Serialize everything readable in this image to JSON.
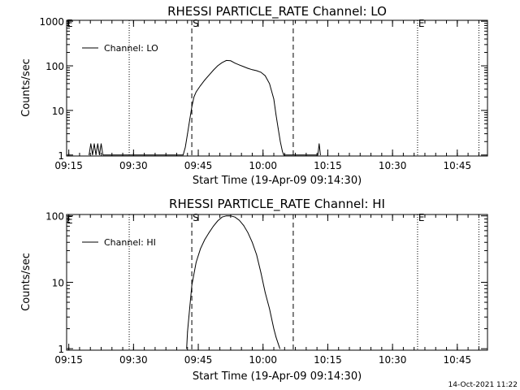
{
  "footer": {
    "timestamp": "14-Oct-2021 11:22"
  },
  "chart_data": [
    {
      "type": "line",
      "title": "RHESSI PARTICLE_RATE Channel: LO",
      "xlabel": "Start Time (19-Apr-09 09:14:30)",
      "ylabel": "Counts/sec",
      "yscale": "log",
      "ylim": [
        0.95,
        1050
      ],
      "xlim_minutes_after_0914_30": [
        0,
        97.5
      ],
      "ytick_labels": [
        "1",
        "10",
        "100",
        "1000"
      ],
      "ytick_values": [
        1,
        10,
        100,
        1000
      ],
      "xtick_labels": [
        "09:15",
        "09:30",
        "09:45",
        "10:00",
        "10:15",
        "10:30",
        "10:45"
      ],
      "xtick_values": [
        0.5,
        15.5,
        30.5,
        45.5,
        60.5,
        75.5,
        90.5
      ],
      "legend": {
        "placement": "top-left",
        "label": "Channel: LO"
      },
      "markers": [
        {
          "label": "S",
          "style": "dashed",
          "x": 29.0
        },
        {
          "label": "",
          "style": "dashed",
          "x": 52.5
        },
        {
          "label": "E",
          "style": "dotted",
          "x": 81.3
        }
      ],
      "extra_dotted_lines": [
        14.5,
        95.5
      ],
      "top_left_marker": "E",
      "series": [
        {
          "name": "Channel: LO",
          "x": [
            5.2,
            5.6,
            6.0,
            6.4,
            6.8,
            7.2,
            7.6,
            8.0,
            8.4,
            27.0,
            27.5,
            28.0,
            28.5,
            29.0,
            29.5,
            30.0,
            31.0,
            32.0,
            33.0,
            34.0,
            35.0,
            36.0,
            37.0,
            38.0,
            39.0,
            40.0,
            41.0,
            42.0,
            43.0,
            44.0,
            45.0,
            46.0,
            47.0,
            48.0,
            48.5,
            49.0,
            49.5,
            50.0,
            50.3,
            58.2,
            58.5,
            58.8
          ],
          "y": [
            1,
            1.8,
            1,
            1.8,
            1,
            1.8,
            1,
            1.8,
            1,
            1,
            1.5,
            3,
            6,
            12,
            20,
            26,
            36,
            48,
            62,
            80,
            100,
            118,
            132,
            130,
            115,
            105,
            96,
            88,
            82,
            78,
            72,
            60,
            40,
            18,
            8,
            4,
            2,
            1.2,
            1,
            1,
            1.8,
            1
          ]
        }
      ]
    },
    {
      "type": "line",
      "title": "RHESSI PARTICLE_RATE Channel: HI",
      "xlabel": "Start Time (19-Apr-09 09:14:30)",
      "ylabel": "Counts/sec",
      "yscale": "log",
      "ylim": [
        0.95,
        105
      ],
      "xlim_minutes_after_0914_30": [
        0,
        97.5
      ],
      "ytick_labels": [
        "1",
        "10",
        "100"
      ],
      "ytick_values": [
        1,
        10,
        100
      ],
      "xtick_labels": [
        "09:15",
        "09:30",
        "09:45",
        "10:00",
        "10:15",
        "10:30",
        "10:45"
      ],
      "xtick_values": [
        0.5,
        15.5,
        30.5,
        45.5,
        60.5,
        75.5,
        90.5
      ],
      "legend": {
        "placement": "top-left",
        "label": "Channel: HI"
      },
      "markers": [
        {
          "label": "S",
          "style": "dashed",
          "x": 29.0
        },
        {
          "label": "",
          "style": "dashed",
          "x": 52.5
        },
        {
          "label": "E",
          "style": "dotted",
          "x": 81.3
        }
      ],
      "extra_dotted_lines": [
        14.5,
        95.5
      ],
      "top_left_marker": "E",
      "series": [
        {
          "name": "Channel: HI",
          "x": [
            27.8,
            28.0,
            28.5,
            29.0,
            30.0,
            31.0,
            32.0,
            33.0,
            34.0,
            35.0,
            36.0,
            37.0,
            38.0,
            39.0,
            40.0,
            41.0,
            42.0,
            43.0,
            44.0,
            45.0,
            46.0,
            47.0,
            48.0,
            48.5,
            49.0,
            49.4
          ],
          "y": [
            1,
            1.8,
            4,
            9,
            20,
            32,
            44,
            56,
            70,
            84,
            96,
            100,
            100,
            96,
            86,
            72,
            56,
            40,
            26,
            14,
            7,
            4,
            2,
            1.5,
            1.2,
            1
          ]
        }
      ]
    }
  ]
}
